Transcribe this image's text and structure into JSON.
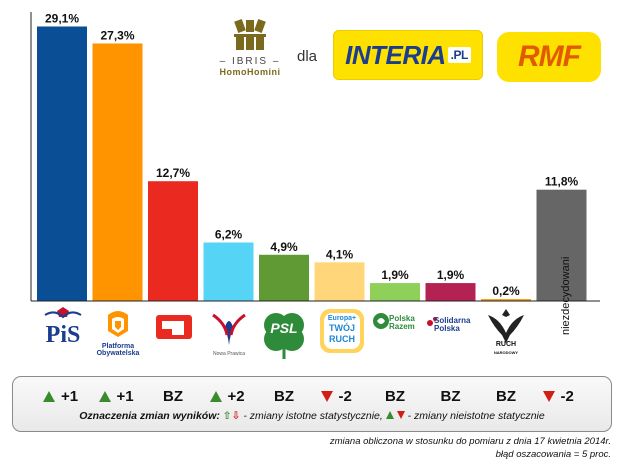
{
  "header": {
    "pollster_name": "IBRIS",
    "pollster_tagline": "HomoHomini",
    "dla": "dla",
    "media1": "INTERIA",
    "media1_suffix": ".PL",
    "media2": "RMF"
  },
  "chart_data": {
    "type": "bar",
    "categories": [
      "PiS",
      "Platforma Obywatelska",
      "SLD",
      "Nowa Prawica",
      "PSL",
      "Europa Plus Twój Ruch",
      "Polska Razem",
      "Solidarna Polska",
      "Ruch Narodowy",
      "niezdecydowani"
    ],
    "values": [
      29.1,
      27.3,
      12.7,
      6.2,
      4.9,
      4.1,
      1.9,
      1.9,
      0.2,
      11.8
    ],
    "value_labels": [
      "29,1%",
      "27,3%",
      "12,7%",
      "6,2%",
      "4,9%",
      "4,1%",
      "1,9%",
      "1,9%",
      "0,2%",
      "11,8%"
    ],
    "colors": [
      "#0a4f95",
      "#ff9400",
      "#ea2a20",
      "#55d4f6",
      "#5f9a35",
      "#ffd77a",
      "#8fd05b",
      "#b32252",
      "#ff9400",
      "#666666"
    ],
    "ylim": [
      0,
      30
    ],
    "title": "",
    "xlabel": "",
    "ylabel": "",
    "grid": false
  },
  "logos": {
    "pis": "PiS",
    "po_line1": "Platforma",
    "po_line2": "Obywatelska",
    "np_text": "Nowa Prawica",
    "psl": "PSL",
    "tr_line1": "Europa+",
    "tr_line2": "TWÓJ",
    "tr_line3": "RUCH",
    "pr_line1": "Polska",
    "pr_line2": "Razem",
    "sp_line1": "Solidarna",
    "sp_line2": "Polska",
    "rn_line1": "RUCH",
    "rn_line2": "NARODOWY",
    "niezdecydowani": "niezdecydowani"
  },
  "changes": [
    {
      "dir": "up",
      "label": "+1"
    },
    {
      "dir": "up",
      "label": "+1"
    },
    {
      "dir": "none",
      "label": "BZ"
    },
    {
      "dir": "up",
      "label": "+2"
    },
    {
      "dir": "none",
      "label": "BZ"
    },
    {
      "dir": "down",
      "label": "-2"
    },
    {
      "dir": "none",
      "label": "BZ"
    },
    {
      "dir": "none",
      "label": "BZ"
    },
    {
      "dir": "none",
      "label": "BZ"
    },
    {
      "dir": "down",
      "label": "-2"
    }
  ],
  "legend": {
    "lead": "Oznaczenia zmian wyników:",
    "significant": "- zmiany istotne statystycznie,",
    "insignificant": "- zmiany nieistotne statycznie"
  },
  "footnote1": "zmiana obliczona w stosunku do pomiaru z dnia 17 kwietnia 2014r.",
  "footnote2": "błąd oszacowania = 5 proc.",
  "colors": {
    "up": "#3a8a2e",
    "down": "#d21d14",
    "axis": "#222222"
  }
}
